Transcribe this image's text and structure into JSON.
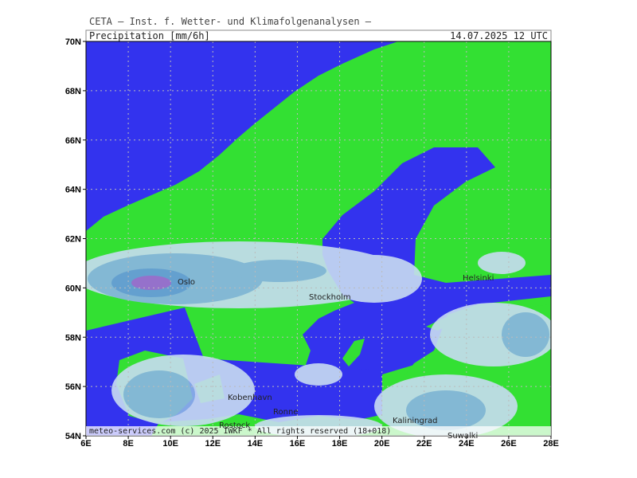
{
  "header": "CETA — Inst. f. Wetter- und Klimafolgenanalysen —",
  "title": "Precipitation [mm/6h]",
  "timestamp": "14.07.2025 12 UTC",
  "lat_labels": [
    "70N",
    "68N",
    "66N",
    "64N",
    "62N",
    "60N",
    "58N",
    "56N",
    "54N"
  ],
  "lon_labels": [
    "6E",
    "8E",
    "10E",
    "12E",
    "14E",
    "16E",
    "18E",
    "20E",
    "22E",
    "24E",
    "26E",
    "28E"
  ],
  "cities": [
    "Oslo",
    "Stockholm",
    "Helsinki",
    "Kobenhavn",
    "Ronne",
    "Rostock",
    "Kaliningrad",
    "Suwalki"
  ],
  "footer": "meteo-services.com (c) 2025 IWKF * All rights reserved (18+018)"
}
